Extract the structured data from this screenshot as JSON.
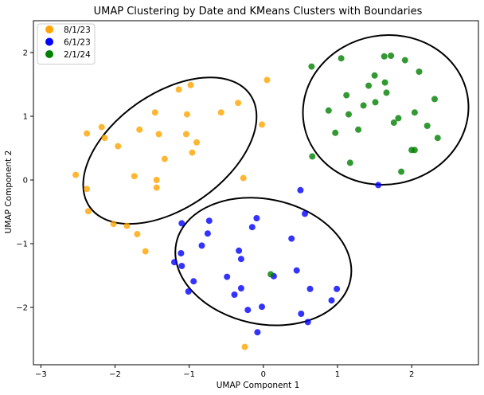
{
  "chart_data": {
    "type": "scatter",
    "title": "UMAP Clustering by Date and KMeans Clusters with Boundaries",
    "xlabel": "UMAP Component 1",
    "ylabel": "UMAP Component 2",
    "xlim": [
      -3.1,
      2.9
    ],
    "ylim": [
      -2.9,
      2.5
    ],
    "xticks": [
      -3,
      -2,
      -1,
      0,
      1,
      2
    ],
    "yticks": [
      -2,
      -1,
      0,
      1,
      2
    ],
    "grid": false,
    "legend_position": "top-left",
    "series": [
      {
        "name": "8/1/23",
        "color": "#FFA500",
        "points": [
          [
            -2.53,
            0.08
          ],
          [
            -2.38,
            0.73
          ],
          [
            -2.38,
            -0.14
          ],
          [
            -2.36,
            -0.49
          ],
          [
            -2.18,
            0.83
          ],
          [
            -2.14,
            0.66
          ],
          [
            -2.02,
            -0.69
          ],
          [
            -1.96,
            0.53
          ],
          [
            -1.84,
            -0.72
          ],
          [
            -1.74,
            0.06
          ],
          [
            -1.7,
            -0.85
          ],
          [
            -1.67,
            0.79
          ],
          [
            -1.59,
            -1.12
          ],
          [
            -1.46,
            1.06
          ],
          [
            -1.44,
            0.0
          ],
          [
            -1.44,
            -0.12
          ],
          [
            -1.41,
            0.72
          ],
          [
            -1.33,
            0.33
          ],
          [
            -1.14,
            1.42
          ],
          [
            -1.04,
            0.72
          ],
          [
            -1.03,
            1.03
          ],
          [
            -0.98,
            1.49
          ],
          [
            -0.96,
            0.43
          ],
          [
            -0.9,
            0.59
          ],
          [
            -0.57,
            1.06
          ],
          [
            -0.34,
            1.21
          ],
          [
            -0.27,
            0.03
          ],
          [
            -0.25,
            -2.62
          ],
          [
            -0.02,
            0.87
          ],
          [
            0.05,
            1.57
          ]
        ]
      },
      {
        "name": "6/1/23",
        "color": "#0000FF",
        "points": [
          [
            -1.2,
            -1.29
          ],
          [
            -1.11,
            -1.15
          ],
          [
            -1.1,
            -0.68
          ],
          [
            -1.1,
            -1.35
          ],
          [
            -1.01,
            -1.75
          ],
          [
            -0.94,
            -1.59
          ],
          [
            -0.83,
            -1.03
          ],
          [
            -0.75,
            -0.84
          ],
          [
            -0.73,
            -0.64
          ],
          [
            -0.49,
            -1.52
          ],
          [
            -0.39,
            -1.8
          ],
          [
            -0.33,
            -1.11
          ],
          [
            -0.3,
            -1.24
          ],
          [
            -0.3,
            -1.7
          ],
          [
            -0.21,
            -2.04
          ],
          [
            -0.15,
            -0.74
          ],
          [
            -0.09,
            -0.6
          ],
          [
            -0.08,
            -2.39
          ],
          [
            -0.02,
            -1.99
          ],
          [
            0.14,
            -1.51
          ],
          [
            0.38,
            -0.92
          ],
          [
            0.45,
            -1.42
          ],
          [
            0.5,
            -0.16
          ],
          [
            0.51,
            -2.1
          ],
          [
            0.56,
            -0.53
          ],
          [
            0.6,
            -2.23
          ],
          [
            0.63,
            -1.71
          ],
          [
            0.92,
            -1.89
          ],
          [
            0.99,
            -1.71
          ],
          [
            1.55,
            -0.08
          ]
        ]
      },
      {
        "name": "2/1/24",
        "color": "#008000",
        "points": [
          [
            0.1,
            -1.48
          ],
          [
            0.65,
            1.78
          ],
          [
            0.66,
            0.37
          ],
          [
            0.88,
            1.09
          ],
          [
            0.97,
            0.74
          ],
          [
            1.05,
            1.91
          ],
          [
            1.12,
            1.33
          ],
          [
            1.15,
            1.03
          ],
          [
            1.17,
            0.27
          ],
          [
            1.28,
            0.79
          ],
          [
            1.35,
            1.17
          ],
          [
            1.42,
            1.48
          ],
          [
            1.5,
            1.64
          ],
          [
            1.51,
            1.22
          ],
          [
            1.63,
            1.94
          ],
          [
            1.64,
            1.53
          ],
          [
            1.66,
            1.37
          ],
          [
            1.72,
            1.95
          ],
          [
            1.76,
            0.9
          ],
          [
            1.82,
            0.97
          ],
          [
            1.86,
            0.13
          ],
          [
            1.91,
            1.88
          ],
          [
            2.0,
            0.47
          ],
          [
            2.04,
            0.47
          ],
          [
            2.04,
            1.06
          ],
          [
            2.1,
            1.7
          ],
          [
            2.21,
            0.85
          ],
          [
            2.31,
            1.27
          ],
          [
            2.35,
            0.66
          ]
        ]
      }
    ],
    "boundaries": [
      {
        "cx": -1.26,
        "cy": 0.46,
        "rx": 1.32,
        "ry": 0.9,
        "angle_deg": 35
      },
      {
        "cx": 0.0,
        "cy": -1.28,
        "rx": 1.2,
        "ry": 0.98,
        "angle_deg": -12
      },
      {
        "cx": 1.65,
        "cy": 1.1,
        "rx": 1.12,
        "ry": 1.17,
        "angle_deg": 10
      }
    ]
  }
}
